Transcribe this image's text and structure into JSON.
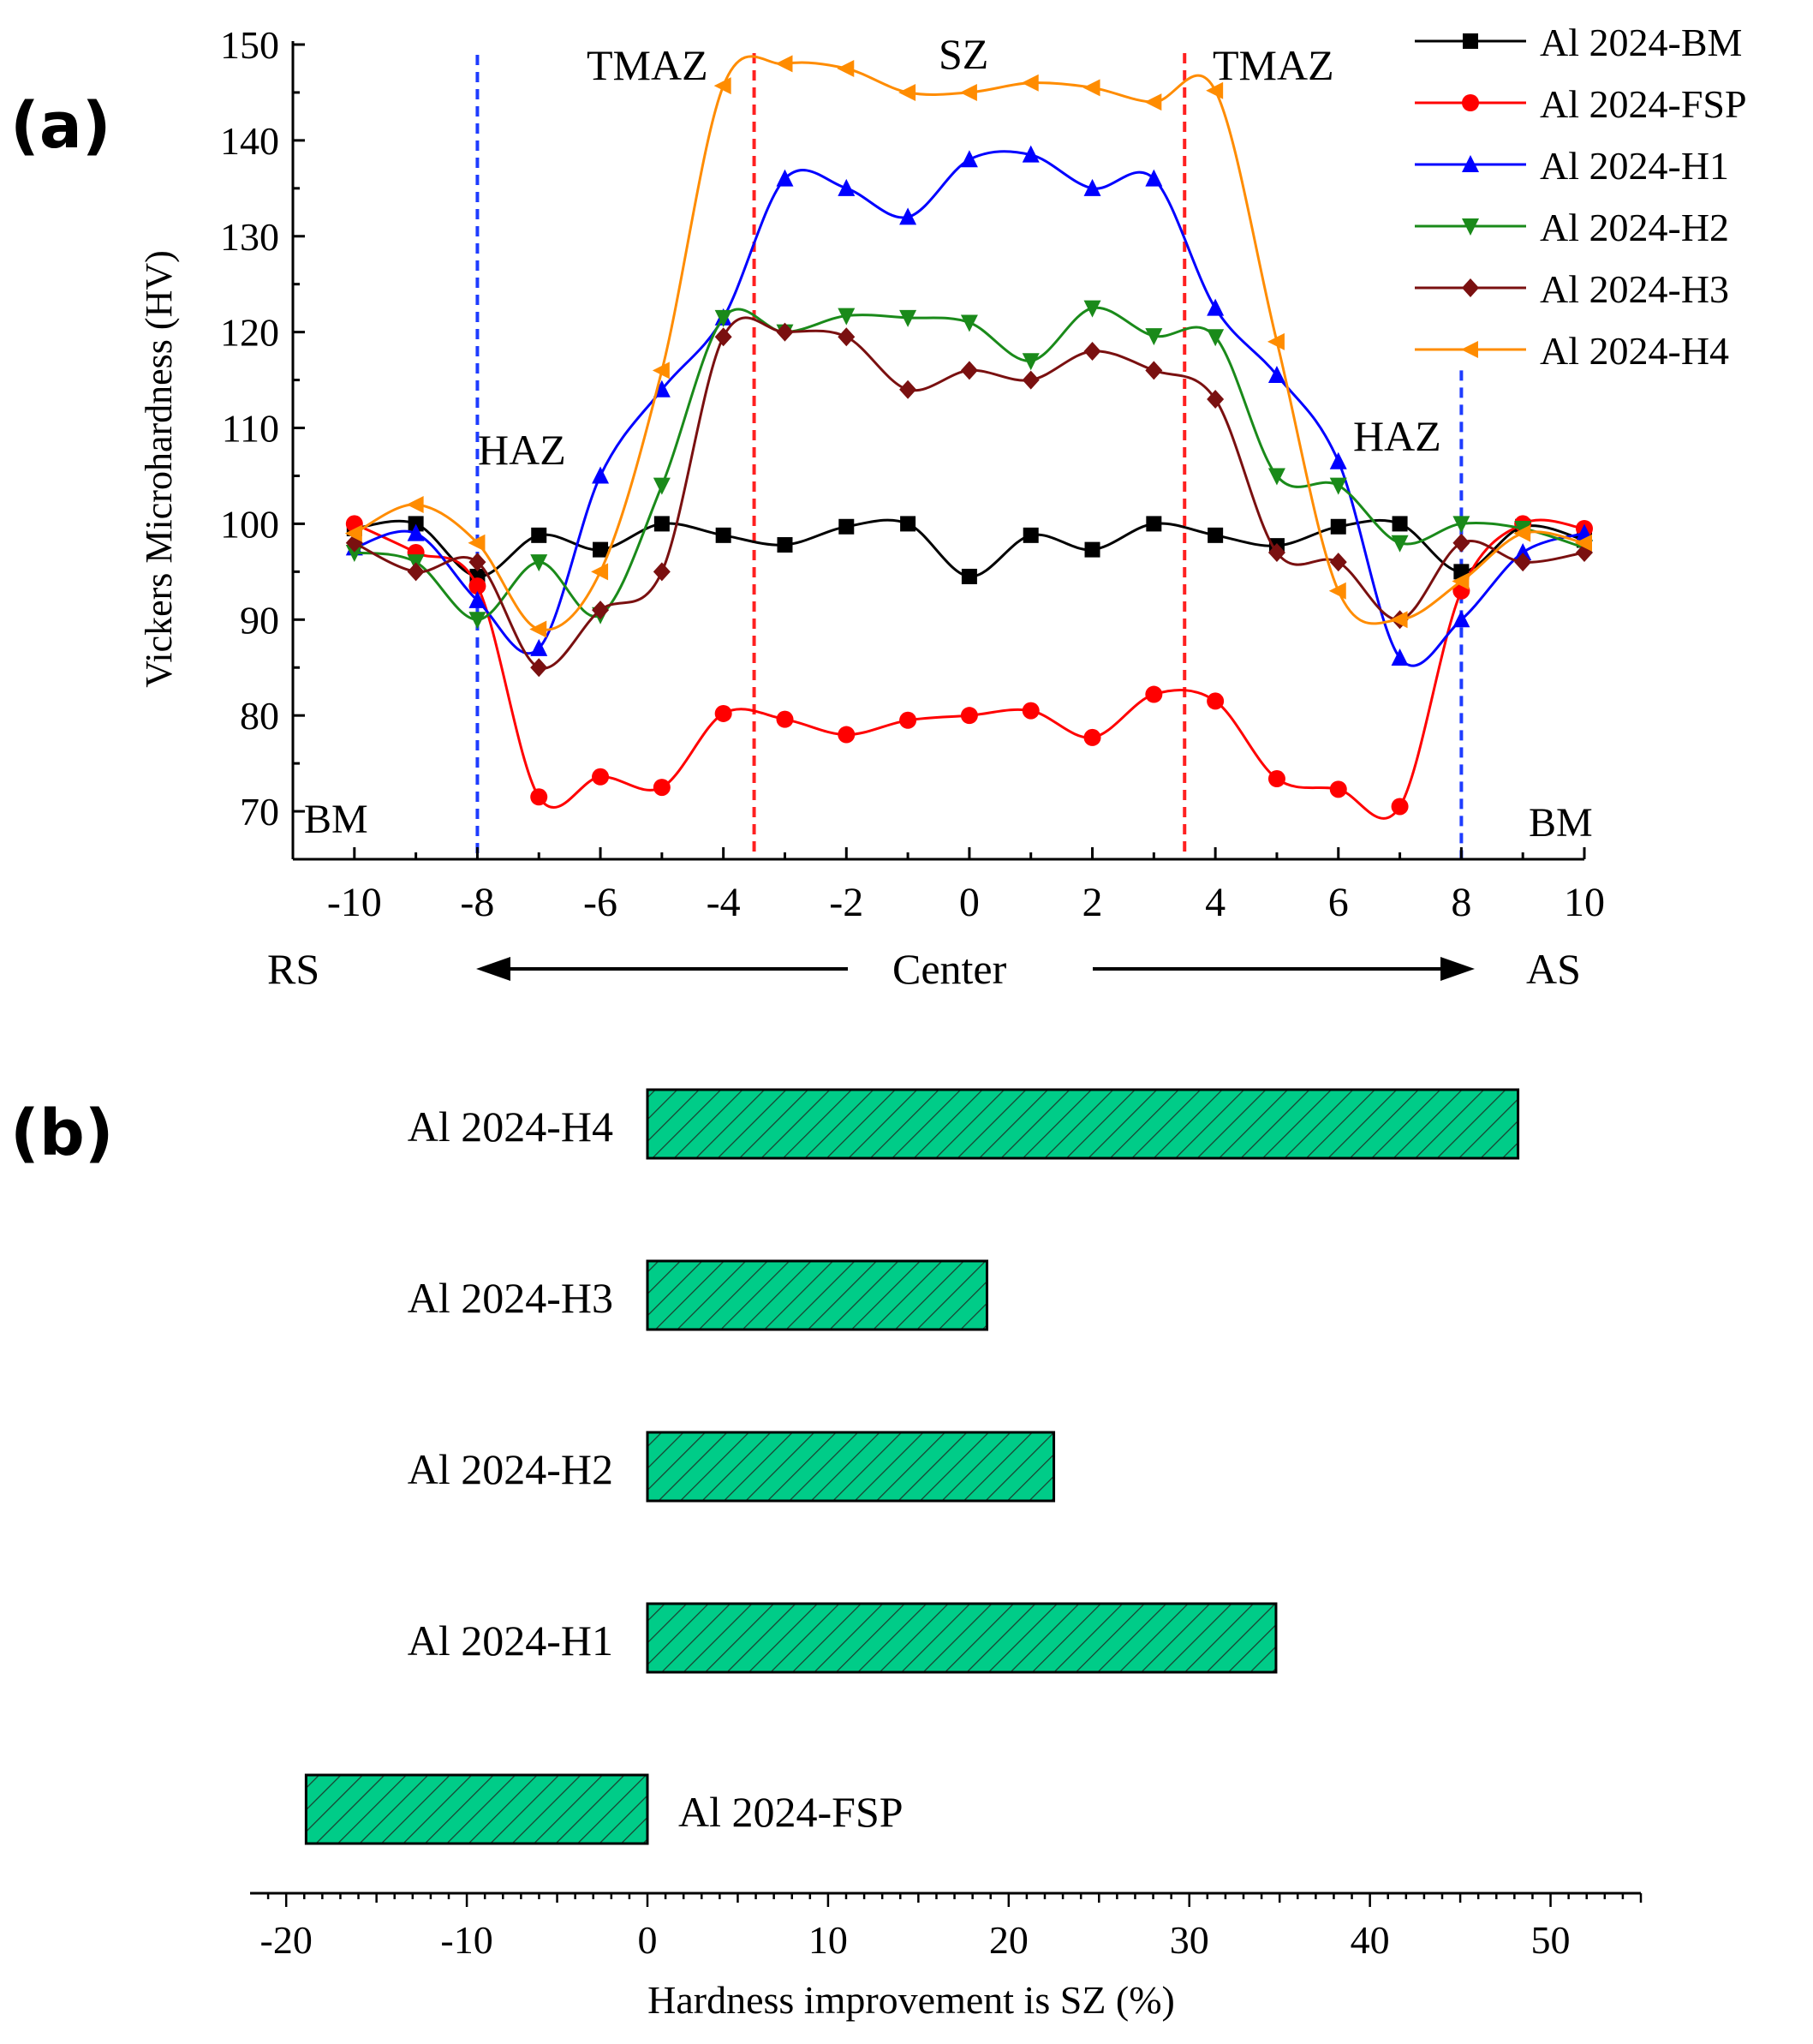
{
  "panel_labels": {
    "a": "(a)",
    "b": "(b)"
  },
  "colors": {
    "BM": "#000000",
    "FSP": "#ff0000",
    "H1": "#0000ff",
    "H2": "#1a8a1a",
    "H3": "#7a1010",
    "H4": "#ff8c00",
    "zone_haz": "#1e3cff",
    "zone_tmaz": "#ff2020",
    "bar_fill": "#00cc88"
  },
  "zone_labels": {
    "bm_left": "BM",
    "bm_right": "BM",
    "haz_left": "HAZ",
    "haz_right": "HAZ",
    "tmaz_left": "TMAZ",
    "tmaz_right": "TMAZ",
    "sz": "SZ"
  },
  "direction": {
    "left": "RS",
    "center": "Center",
    "right": "AS"
  },
  "chart_data": [
    {
      "type": "line",
      "title": "",
      "xlabel": "",
      "ylabel": "Vickers Microhardness (HV)",
      "xlim": [
        -11,
        10
      ],
      "ylim": [
        65,
        150
      ],
      "x_ticks": [
        "-10",
        "-8",
        "-6",
        "-4",
        "-2",
        "0",
        "2",
        "4",
        "6",
        "8",
        "10"
      ],
      "y_ticks": [
        "70",
        "80",
        "90",
        "100",
        "110",
        "120",
        "130",
        "140",
        "150"
      ],
      "zone_boundaries": {
        "haz": [
          -8,
          8
        ],
        "tmaz": [
          -3.5,
          3.5
        ]
      },
      "legend_position": "top-right",
      "x": [
        -10,
        -9,
        -8,
        -7,
        -6,
        -5,
        -4,
        -3,
        -2,
        -1,
        0,
        1,
        2,
        3,
        4,
        5,
        6,
        7,
        8,
        9,
        10
      ],
      "series": [
        {
          "name": "Al 2024-BM",
          "key": "BM",
          "marker": "square",
          "values": [
            99.5,
            100,
            94.5,
            98.8,
            97.3,
            100,
            98.8,
            97.8,
            99.7,
            100,
            94.5,
            98.8,
            97.3,
            100,
            98.8,
            97.7,
            99.7,
            100,
            95,
            99.7,
            98.3
          ]
        },
        {
          "name": "Al 2024-FSP",
          "key": "FSP",
          "marker": "circle",
          "values": [
            100,
            97,
            93.5,
            71.5,
            73.6,
            72.5,
            80.2,
            79.6,
            78,
            79.5,
            80,
            80.5,
            77.7,
            82.2,
            81.5,
            73.4,
            72.3,
            70.5,
            93,
            100,
            99.5
          ]
        },
        {
          "name": "Al 2024-H1",
          "key": "H1",
          "marker": "triangle-up",
          "values": [
            97.5,
            99,
            92,
            87,
            105,
            114,
            121.5,
            136,
            135,
            132,
            138,
            138.5,
            135,
            136,
            122.5,
            115.5,
            106.5,
            86,
            90,
            97,
            99
          ]
        },
        {
          "name": "Al 2024-H2",
          "key": "H2",
          "marker": "triangle-down",
          "values": [
            97,
            96,
            90,
            96,
            90.5,
            104,
            121.5,
            120,
            121.7,
            121.5,
            121,
            117,
            122.5,
            119.6,
            119.5,
            105,
            104,
            98,
            100,
            99.5,
            97.5
          ]
        },
        {
          "name": "Al 2024-H3",
          "key": "H3",
          "marker": "diamond",
          "values": [
            98,
            95,
            96,
            85,
            91,
            95,
            119.5,
            120,
            119.5,
            114,
            116,
            115,
            118,
            116,
            113,
            97,
            96,
            90,
            98,
            96,
            97
          ]
        },
        {
          "name": "Al 2024-H4",
          "key": "H4",
          "marker": "triangle-left",
          "values": [
            99,
            102,
            98,
            89,
            95,
            116,
            145.7,
            148,
            147.5,
            145,
            145,
            146,
            145.5,
            144,
            145.2,
            119,
            93,
            90,
            94,
            99,
            98
          ]
        }
      ]
    },
    {
      "type": "bar",
      "orientation": "horizontal",
      "title": "",
      "xlabel": "Hardness improvement is SZ (%)",
      "ylabel": "",
      "xlim": [
        -22,
        55
      ],
      "x_ticks": [
        "-20",
        "-10",
        "0",
        "10",
        "20",
        "30",
        "40",
        "50"
      ],
      "categories": [
        "Al 2024-H4",
        "Al 2024-H3",
        "Al 2024-H2",
        "Al 2024-H1",
        "Al 2024-FSP"
      ],
      "values": [
        48.2,
        18.8,
        22.5,
        34.8,
        -18.9
      ]
    }
  ]
}
